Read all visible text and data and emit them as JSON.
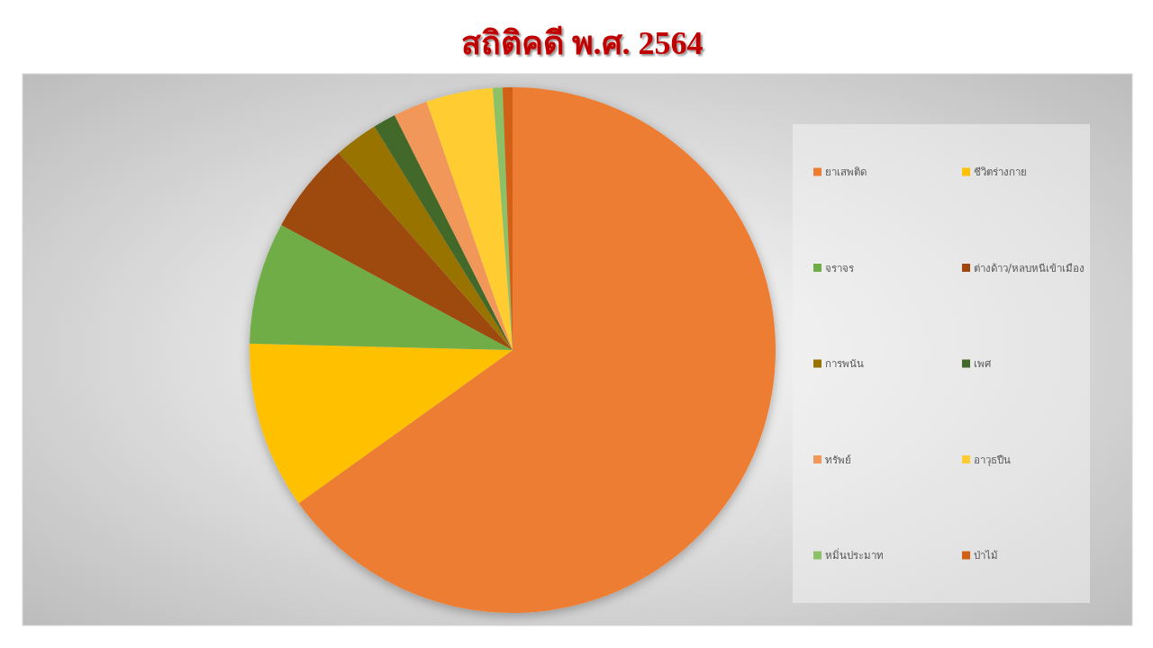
{
  "chart_data": {
    "type": "pie",
    "title": "สถิติคดี พ.ศ. 2564",
    "categories": [
      "ยาเสพติด",
      "ชีวิตร่างกาย",
      "จราจร",
      "ต่างด้าว/หลบหนีเข้าเมือง",
      "การพนัน",
      "เพศ",
      "ทรัพย์",
      "อาวุธปืน",
      "หมิ่นประมาท",
      "ป่าไม้"
    ],
    "values": [
      65.1,
      10.3,
      7.5,
      5.6,
      2.7,
      1.4,
      2.1,
      4.1,
      0.6,
      0.6
    ],
    "colors": [
      "#ed7d31",
      "#ffc000",
      "#70ad47",
      "#9e480e",
      "#997300",
      "#43682b",
      "#f1975a",
      "#ffcd33",
      "#8cc168",
      "#d26012"
    ],
    "legend": "right"
  }
}
